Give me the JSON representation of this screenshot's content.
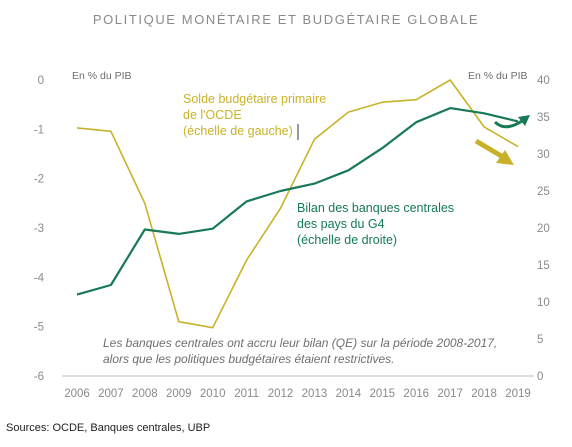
{
  "chart_data": {
    "type": "line",
    "title": "POLITIQUE MONÉTAIRE ET BUDGÉTAIRE GLOBALE",
    "x": [
      "2006",
      "2007",
      "2008",
      "2009",
      "2010",
      "2011",
      "2012",
      "2013",
      "2014",
      "2015",
      "2016",
      "2017",
      "2018",
      "2019"
    ],
    "left_axis": {
      "unit_label": "En % du PIB",
      "ylim": [
        -6,
        0
      ],
      "ticks": [
        "0",
        "-1",
        "-2",
        "-3",
        "-4",
        "-5",
        "-6"
      ]
    },
    "right_axis": {
      "unit_label": "En % du PIB",
      "ylim": [
        0,
        40
      ],
      "ticks": [
        "40",
        "35",
        "30",
        "25",
        "20",
        "15",
        "10",
        "5",
        "0"
      ]
    },
    "series": [
      {
        "name": "Solde budgétaire primaire de l'OCDE (échelle de gauche)",
        "label_lines": [
          "Solde budgétaire primaire",
          "de l'OCDE",
          "(échelle de gauche)"
        ],
        "axis": "left",
        "color": "#c8b22a",
        "values": [
          -0.97,
          -1.04,
          -2.5,
          -4.9,
          -5.02,
          -3.65,
          -2.6,
          -1.2,
          -0.65,
          -0.45,
          -0.4,
          0.0,
          -0.95,
          -1.35
        ]
      },
      {
        "name": "Bilan des banques centrales des pays du G4 (échelle de droite)",
        "label_lines": [
          "Bilan des banques centrales",
          "des pays du G4",
          "(échelle de droite)"
        ],
        "axis": "right",
        "color": "#177a55",
        "values": [
          11.0,
          12.3,
          19.8,
          19.2,
          19.9,
          23.6,
          25.0,
          26.0,
          27.8,
          30.8,
          34.3,
          36.2,
          35.5,
          34.4
        ]
      }
    ],
    "note_lines": [
      "Les banques centrales ont accru leur bilan (QE) sur la période 2008-2017,",
      "alors que les politiques budgétaires étaient restrictives."
    ]
  },
  "source": "Sources: OCDE, Banques centrales, UBP",
  "arrows": [
    {
      "icon": "arrow-down-right-icon",
      "color": "#c8b22a"
    },
    {
      "icon": "arrow-up-right-icon",
      "color": "#177a55"
    }
  ]
}
